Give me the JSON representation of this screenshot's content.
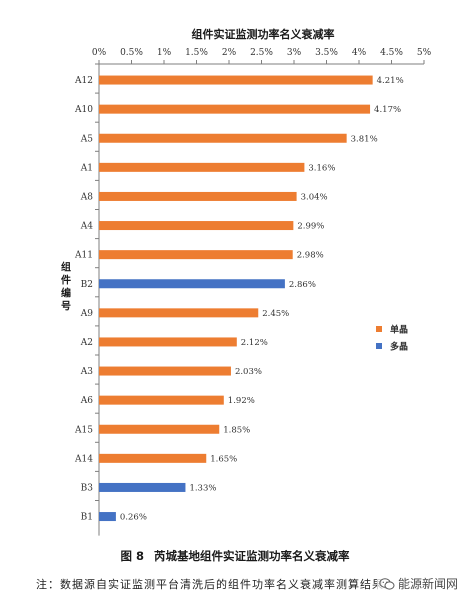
{
  "chart_data": {
    "type": "bar",
    "orientation": "horizontal",
    "title": "组件实证监测功率名义衰减率",
    "ylabel": "组件编号",
    "categories": [
      "A12",
      "A10",
      "A5",
      "A1",
      "A8",
      "A4",
      "A11",
      "B2",
      "A9",
      "A2",
      "A3",
      "A6",
      "A15",
      "A14",
      "B3",
      "B1"
    ],
    "values": [
      4.21,
      4.17,
      3.81,
      3.16,
      3.04,
      2.99,
      2.98,
      2.86,
      2.45,
      2.12,
      2.03,
      1.92,
      1.85,
      1.65,
      1.33,
      0.26
    ],
    "value_labels": [
      "4.21%",
      "4.17%",
      "3.81%",
      "3.16%",
      "3.04%",
      "2.99%",
      "2.98%",
      "2.86%",
      "2.45%",
      "2.12%",
      "2.03%",
      "1.92%",
      "1.85%",
      "1.65%",
      "1.33%",
      "0.26%"
    ],
    "groups": [
      "单晶",
      "单晶",
      "单晶",
      "单晶",
      "单晶",
      "单晶",
      "单晶",
      "多晶",
      "单晶",
      "单晶",
      "单晶",
      "单晶",
      "单晶",
      "单晶",
      "多晶",
      "多晶"
    ],
    "series": [
      {
        "name": "单晶",
        "color": "#ED7D31"
      },
      {
        "name": "多晶",
        "color": "#4472C4"
      }
    ],
    "xlim": [
      0,
      5
    ],
    "x_ticks": [
      0,
      0.5,
      1,
      1.5,
      2,
      2.5,
      3,
      3.5,
      4,
      4.5,
      5
    ],
    "x_tick_labels": [
      "0%",
      "0.5%",
      "1%",
      "1.5%",
      "2%",
      "2.5%",
      "3%",
      "3.5%",
      "4%",
      "4.5%",
      "5%"
    ],
    "x_axis_position": "top",
    "grid": false,
    "legend_position": "right"
  },
  "figure": {
    "number": "图 8",
    "caption": "芮城基地组件实证监测功率名义衰减率"
  },
  "note": "注：数据源自实证监测平台清洗后的组件功率名义衰减率测算结果。",
  "watermark": {
    "text": "能源新闻网",
    "icon": "wechat-icon"
  }
}
